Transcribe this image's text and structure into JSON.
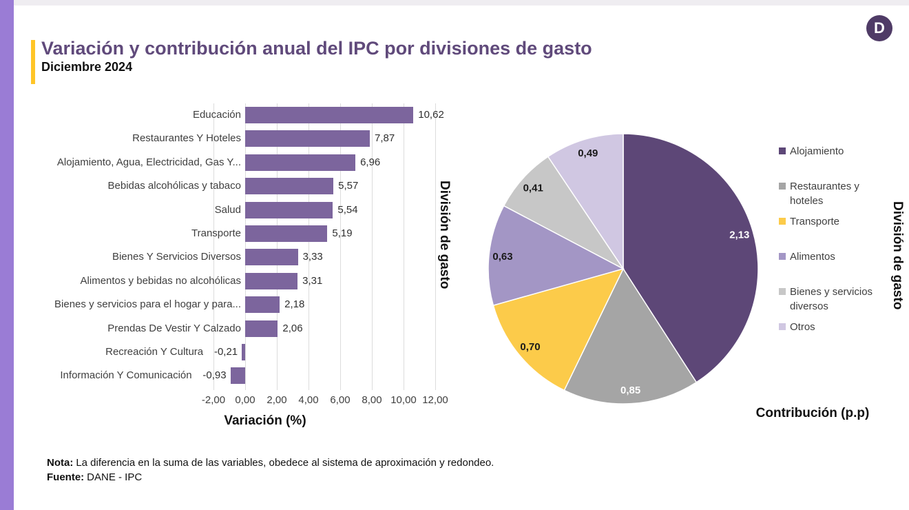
{
  "page": {
    "title": "Variación y contribución anual del IPC por divisiones de gasto",
    "subtitle": "Diciembre 2024",
    "logo_letter": "D",
    "note_label": "Nota:",
    "note_text": "La diferencia en la suma de las variables, obedece al sistema de aproximación y redondeo.",
    "source_label": "Fuente:",
    "source_text": "DANE - IPC",
    "colors": {
      "left_border": "#9A7CD5",
      "title": "#604A7B",
      "accent_yellow": "#FFC527",
      "logo_circle": "#4F3B66",
      "gridline": "#DCDCDC"
    }
  },
  "chart_data": [
    {
      "type": "bar",
      "orientation": "horizontal",
      "xlabel": "Variación (%)",
      "ylabel": "División de gasto",
      "xlim": [
        -2,
        12
      ],
      "xtick_values": [
        -2,
        0,
        2,
        4,
        6,
        8,
        10,
        12
      ],
      "xtick_labels": [
        "-2,00",
        "0,00",
        "2,00",
        "4,00",
        "6,00",
        "8,00",
        "10,00",
        "12,00"
      ],
      "grid": true,
      "bar_color": "#7C659D",
      "categories": [
        "Educación",
        "Restaurantes Y Hoteles",
        "Alojamiento, Agua, Electricidad, Gas Y...",
        "Bebidas alcohólicas y tabaco",
        "Salud",
        "Transporte",
        "Bienes Y Servicios Diversos",
        "Alimentos y bebidas no alcohólicas",
        "Bienes y servicios para el hogar y para...",
        "Prendas De Vestir Y Calzado",
        "Recreación Y Cultura",
        "Información Y Comunicación"
      ],
      "values": [
        10.62,
        7.87,
        6.96,
        5.57,
        5.54,
        5.19,
        3.33,
        3.31,
        2.18,
        2.06,
        -0.21,
        -0.93
      ],
      "value_labels": [
        "10,62",
        "7,87",
        "6,96",
        "5,57",
        "5,54",
        "5,19",
        "3,33",
        "3,31",
        "2,18",
        "2,06",
        "-0,21",
        "-0,93"
      ]
    },
    {
      "type": "pie",
      "xlabel": "Contribución (p.p)",
      "ylabel": "División de gasto",
      "legend_position": "right",
      "start_angle_deg": 0,
      "clockwise": true,
      "slices": [
        {
          "label": "Alojamiento",
          "value": 2.13,
          "display": "2,13",
          "color": "#5D4777",
          "text_color": "#FFFFFF"
        },
        {
          "label": "Restaurantes y hoteles",
          "value": 0.85,
          "display": "0,85",
          "color": "#A5A5A5",
          "text_color": "#FFFFFF"
        },
        {
          "label": "Transporte",
          "value": 0.7,
          "display": "0,70",
          "color": "#FCCB4A",
          "text_color": "#1A1A1A"
        },
        {
          "label": "Alimentos",
          "value": 0.63,
          "display": "0,63",
          "color": "#A396C5",
          "text_color": "#1A1A1A"
        },
        {
          "label": "Bienes y servicios diversos",
          "value": 0.41,
          "display": "0,41",
          "color": "#C7C7C7",
          "text_color": "#1A1A1A"
        },
        {
          "label": "Otros",
          "value": 0.49,
          "display": "0,49",
          "color": "#D0C7E2",
          "text_color": "#1A1A1A"
        }
      ]
    }
  ]
}
